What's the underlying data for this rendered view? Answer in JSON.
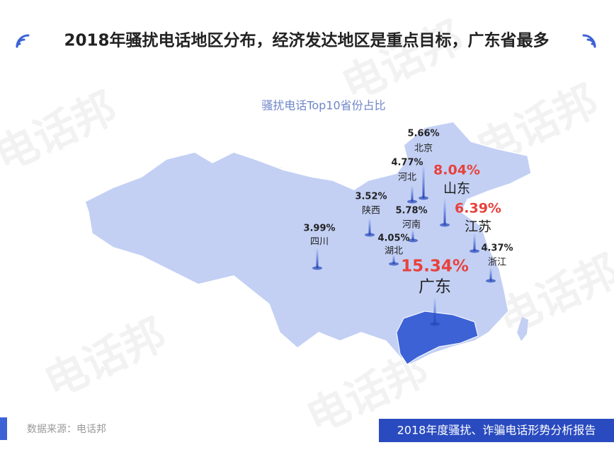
{
  "header": {
    "title": "2018年骚扰电话地区分布，经济发达地区是重点目标，广东省最多"
  },
  "chart_data": {
    "type": "map",
    "title": "骚扰电话Top10省份占比",
    "categories": [
      "北京",
      "河北",
      "山东",
      "江苏",
      "浙江",
      "河南",
      "陕西",
      "湖北",
      "四川",
      "广东"
    ],
    "values": [
      5.66,
      4.77,
      8.04,
      6.39,
      4.37,
      5.78,
      3.52,
      4.05,
      3.99,
      15.34
    ],
    "value_labels": [
      "5.66%",
      "4.77%",
      "8.04%",
      "6.39%",
      "4.37%",
      "5.78%",
      "3.52%",
      "4.05%",
      "3.99%",
      "15.34%"
    ],
    "color": "#c3d0f4",
    "highlight_color": "#3d62d6",
    "label_color": "#222222",
    "emphasis_color": "#e8413c"
  },
  "footer": {
    "source": "数据来源：电话邦",
    "report": "2018年度骚扰、诈骗电话形势分析报告"
  },
  "watermark": "电话邦"
}
